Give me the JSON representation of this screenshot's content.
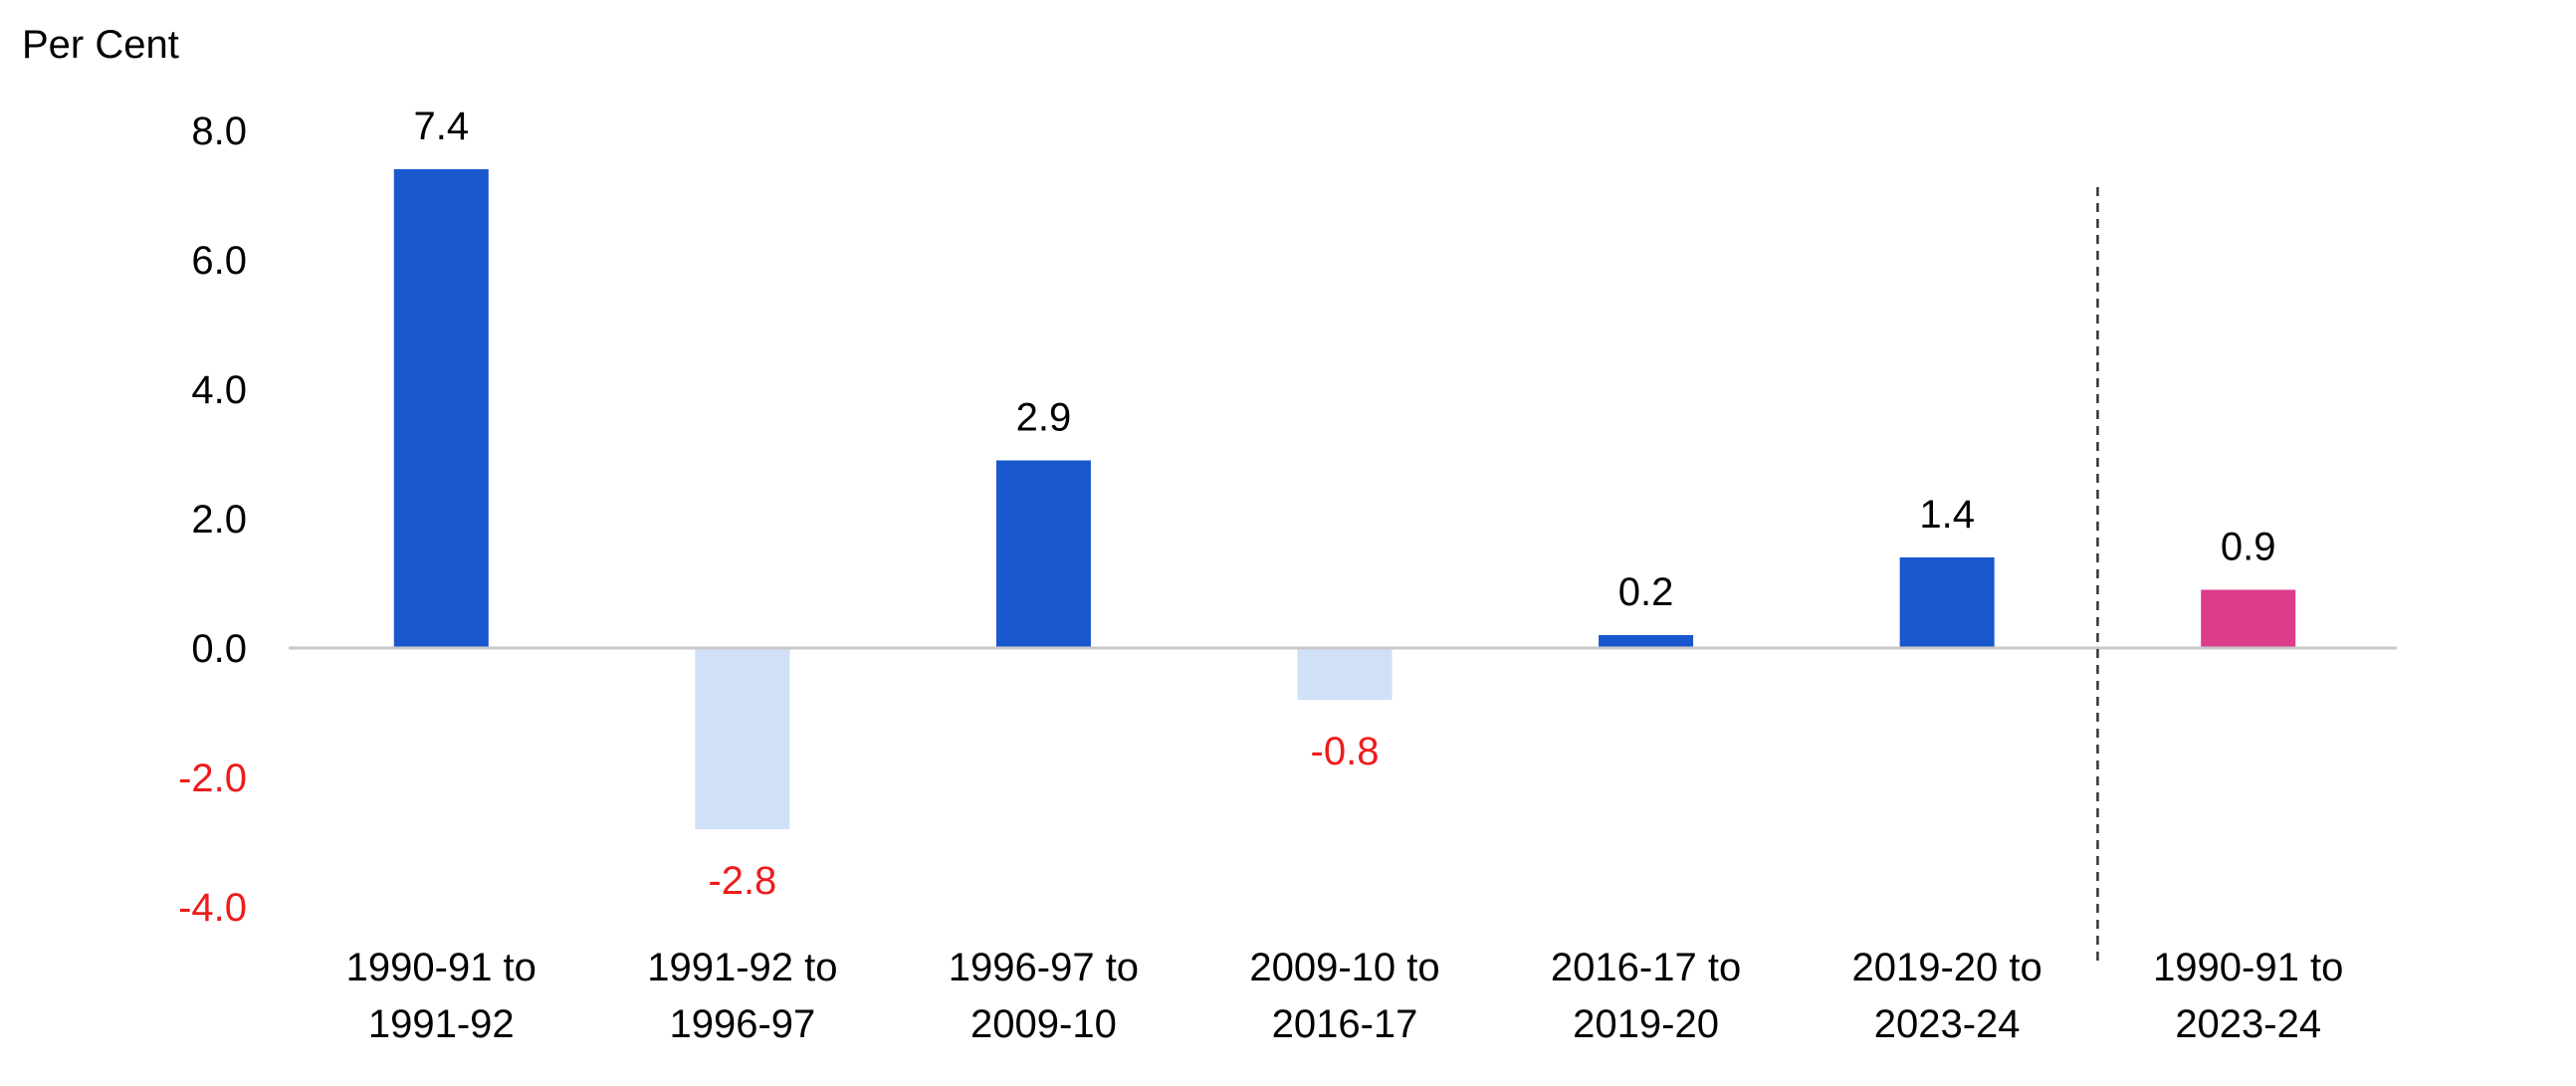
{
  "chart_data": {
    "type": "bar",
    "title": "",
    "ylabel": "Per Cent",
    "xlabel": "",
    "ylim": [
      -4,
      8
    ],
    "yticks": [
      {
        "value": 8,
        "label": "8.0"
      },
      {
        "value": 6,
        "label": "6.0"
      },
      {
        "value": 4,
        "label": "4.0"
      },
      {
        "value": 2,
        "label": "2.0"
      },
      {
        "value": 0,
        "label": "0.0"
      },
      {
        "value": -2,
        "label": "-2.0"
      },
      {
        "value": -4,
        "label": "-4.0"
      }
    ],
    "categories": [
      [
        "1990-91 to",
        "1991-92"
      ],
      [
        "1991-92 to",
        "1996-97"
      ],
      [
        "1996-97 to",
        "2009-10"
      ],
      [
        "2009-10 to",
        "2016-17"
      ],
      [
        "2016-17 to",
        "2019-20"
      ],
      [
        "2019-20 to",
        "2023-24"
      ],
      [
        "1990-91 to",
        "2023-24"
      ]
    ],
    "values": [
      7.4,
      -2.8,
      2.9,
      -0.8,
      0.2,
      1.4,
      0.9
    ],
    "data_labels": [
      "7.4",
      "-2.8",
      "2.9",
      "-0.8",
      "0.2",
      "1.4",
      "0.9"
    ],
    "grid": false,
    "legend": "none",
    "separator_after_category_index": 5,
    "colors": {
      "positive_bar": "#1957CC",
      "negative_bar": "#CFE0F7",
      "overall_bar": "#DC3C8A",
      "negative_text": "#EE1C1C",
      "text": "#000000",
      "axis": "#C8C8C8",
      "separator": "#333333"
    }
  }
}
